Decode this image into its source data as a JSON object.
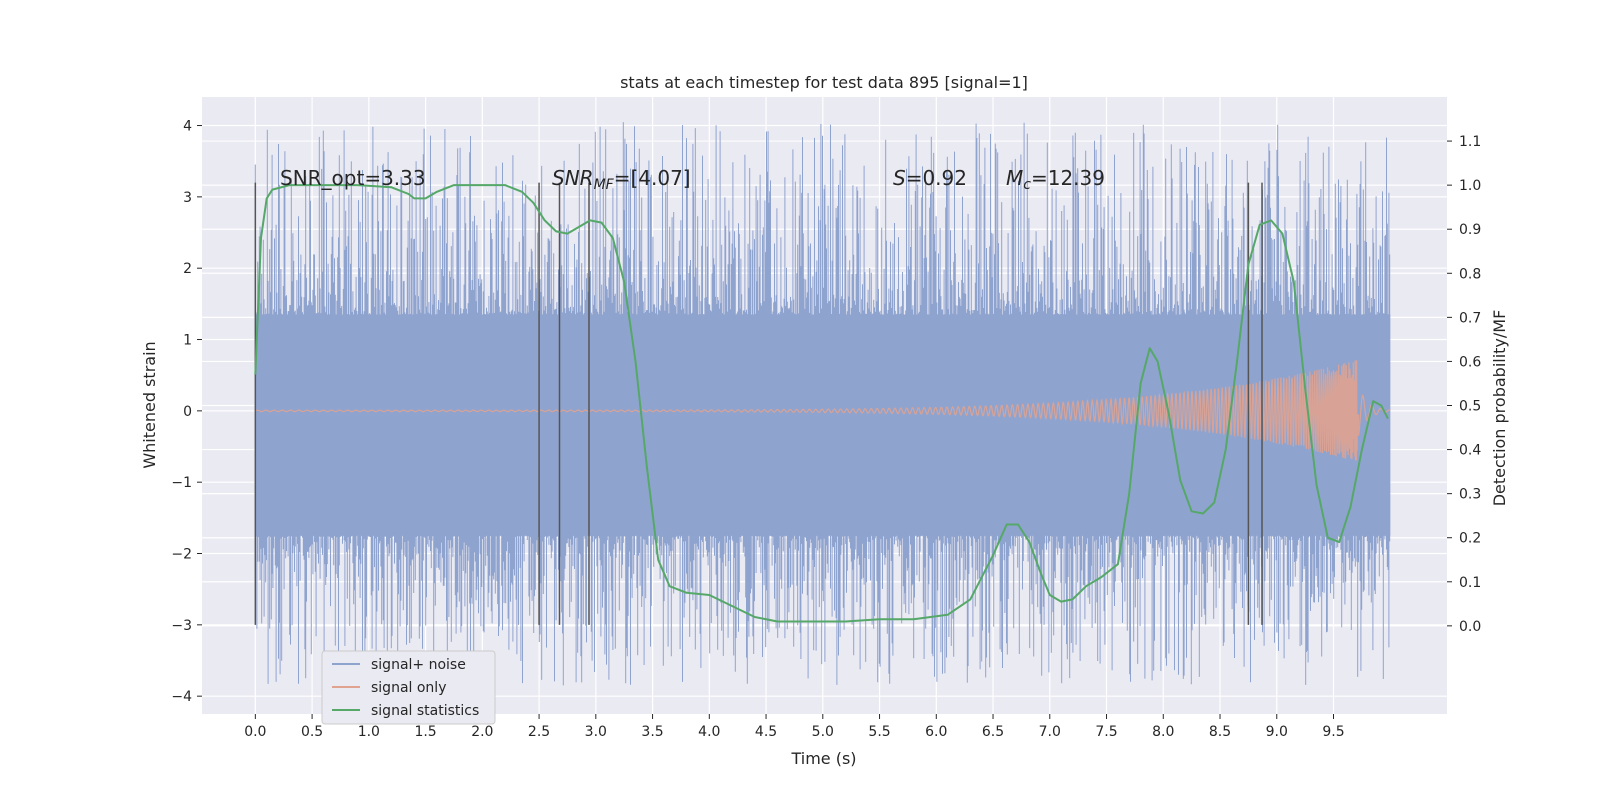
{
  "chart_data": {
    "type": "line",
    "title": "stats at each timestep for test data 895 [signal=1]",
    "xlabel": "Time (s)",
    "ylabel": "Whitened strain",
    "y2label": "Detection probability/MF",
    "xlim": [
      -0.47,
      10.5
    ],
    "ylim": [
      -4.25,
      4.4
    ],
    "y2lim": [
      -0.2,
      1.2
    ],
    "xticks": [
      "0.0",
      "0.5",
      "1.0",
      "1.5",
      "2.0",
      "2.5",
      "3.0",
      "3.5",
      "4.0",
      "4.5",
      "5.0",
      "5.5",
      "6.0",
      "6.5",
      "7.0",
      "7.5",
      "8.0",
      "8.5",
      "9.0",
      "9.5"
    ],
    "yticks": [
      "4",
      "3",
      "2",
      "1",
      "0",
      "−1",
      "−2",
      "−3",
      "−4"
    ],
    "y2ticks": [
      "1.1",
      "1.0",
      "0.9",
      "0.8",
      "0.7",
      "0.6",
      "0.5",
      "0.4",
      "0.3",
      "0.2",
      "0.1",
      "0.0"
    ],
    "grid": true,
    "legend_position": "lower-left",
    "annotations": {
      "snr_opt": "SNR_opt=3.33",
      "snr_mf_main": "SNR",
      "snr_mf_sub": "MF",
      "snr_mf_value": "=[4.07]",
      "s_symbol": "S",
      "s_value": "=0.92",
      "mc_symbol": "M",
      "mc_sub": "c",
      "mc_value": "=12.39"
    },
    "vertical_markers": [
      {
        "x": 0.0,
        "y_range": [
          -3.0,
          3.2
        ]
      },
      {
        "x": 2.5,
        "y_range": [
          -3.0,
          3.2
        ]
      },
      {
        "x": 2.68,
        "y_range": [
          -3.0,
          3.2
        ]
      },
      {
        "x": 2.94,
        "y_range": [
          -3.0,
          3.2
        ]
      },
      {
        "x": 8.75,
        "y_range": [
          -3.0,
          3.2
        ]
      },
      {
        "x": 8.87,
        "y_range": [
          -3.0,
          3.2
        ]
      }
    ],
    "series": [
      {
        "name": "signal+ noise",
        "color": "#8fa3cf",
        "style": "noisy band",
        "x_range": [
          0.0,
          10.0
        ],
        "band_core": [
          -1.75,
          1.35
        ],
        "peak_max": 4.05,
        "peak_min": -3.85
      },
      {
        "name": "signal only",
        "color": "#e0a38f",
        "style": "chirp",
        "x_range": [
          0.0,
          9.72
        ],
        "amplitude_end": 0.72,
        "amplitude_start": 0.01
      },
      {
        "name": "signal statistics",
        "color": "#55a868",
        "axis": "right",
        "points": [
          [
            0.0,
            0.57
          ],
          [
            0.05,
            0.88
          ],
          [
            0.1,
            0.97
          ],
          [
            0.15,
            0.99
          ],
          [
            0.3,
            1.0
          ],
          [
            0.6,
            1.0
          ],
          [
            0.9,
            1.0
          ],
          [
            1.2,
            0.995
          ],
          [
            1.35,
            0.98
          ],
          [
            1.4,
            0.97
          ],
          [
            1.5,
            0.97
          ],
          [
            1.6,
            0.985
          ],
          [
            1.75,
            1.0
          ],
          [
            2.0,
            1.0
          ],
          [
            2.2,
            1.0
          ],
          [
            2.35,
            0.985
          ],
          [
            2.45,
            0.96
          ],
          [
            2.55,
            0.92
          ],
          [
            2.65,
            0.895
          ],
          [
            2.75,
            0.89
          ],
          [
            2.85,
            0.905
          ],
          [
            2.95,
            0.92
          ],
          [
            3.05,
            0.915
          ],
          [
            3.15,
            0.88
          ],
          [
            3.25,
            0.78
          ],
          [
            3.35,
            0.6
          ],
          [
            3.45,
            0.36
          ],
          [
            3.55,
            0.15
          ],
          [
            3.65,
            0.09
          ],
          [
            3.8,
            0.075
          ],
          [
            4.0,
            0.07
          ],
          [
            4.2,
            0.045
          ],
          [
            4.4,
            0.02
          ],
          [
            4.6,
            0.01
          ],
          [
            4.9,
            0.01
          ],
          [
            5.2,
            0.01
          ],
          [
            5.5,
            0.015
          ],
          [
            5.8,
            0.015
          ],
          [
            6.1,
            0.025
          ],
          [
            6.3,
            0.06
          ],
          [
            6.5,
            0.16
          ],
          [
            6.62,
            0.23
          ],
          [
            6.72,
            0.23
          ],
          [
            6.82,
            0.19
          ],
          [
            6.92,
            0.12
          ],
          [
            7.0,
            0.07
          ],
          [
            7.1,
            0.055
          ],
          [
            7.2,
            0.06
          ],
          [
            7.32,
            0.09
          ],
          [
            7.45,
            0.11
          ],
          [
            7.6,
            0.14
          ],
          [
            7.7,
            0.3
          ],
          [
            7.8,
            0.55
          ],
          [
            7.88,
            0.63
          ],
          [
            7.95,
            0.6
          ],
          [
            8.05,
            0.48
          ],
          [
            8.15,
            0.33
          ],
          [
            8.25,
            0.26
          ],
          [
            8.35,
            0.255
          ],
          [
            8.45,
            0.28
          ],
          [
            8.55,
            0.4
          ],
          [
            8.65,
            0.6
          ],
          [
            8.75,
            0.82
          ],
          [
            8.85,
            0.91
          ],
          [
            8.95,
            0.92
          ],
          [
            9.05,
            0.89
          ],
          [
            9.15,
            0.78
          ],
          [
            9.25,
            0.54
          ],
          [
            9.35,
            0.32
          ],
          [
            9.45,
            0.2
          ],
          [
            9.55,
            0.19
          ],
          [
            9.65,
            0.27
          ],
          [
            9.75,
            0.4
          ],
          [
            9.85,
            0.51
          ],
          [
            9.92,
            0.5
          ],
          [
            9.98,
            0.47
          ]
        ]
      }
    ]
  }
}
